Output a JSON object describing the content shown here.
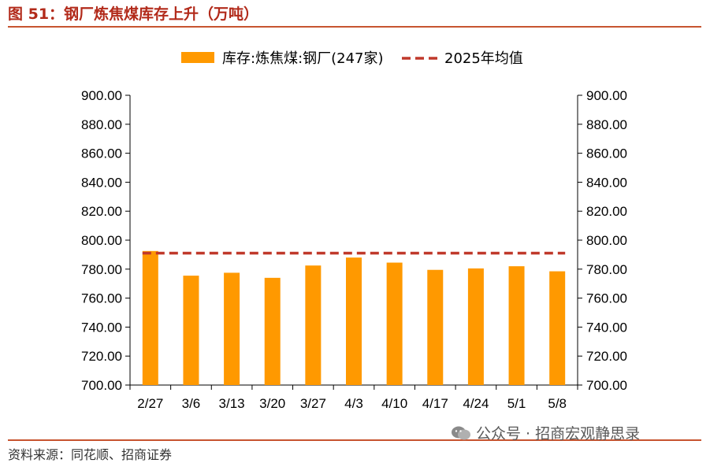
{
  "header": {
    "title": "图 51：钢厂炼焦煤库存上升（万吨）"
  },
  "footer": {
    "source": "资料来源：同花顺、招商证券",
    "watermark": "公众号 · 招商宏观静思录"
  },
  "chart_data": {
    "type": "bar",
    "categories": [
      "2/27",
      "3/6",
      "3/13",
      "3/20",
      "3/27",
      "4/3",
      "4/10",
      "4/17",
      "4/24",
      "5/1",
      "5/8"
    ],
    "series": [
      {
        "name": "库存:炼焦煤:钢厂(247家)",
        "type": "bar",
        "color": "#ff9900",
        "values": [
          792.5,
          775.5,
          777.5,
          774.0,
          782.5,
          788.0,
          784.5,
          779.5,
          780.5,
          782.0,
          778.5
        ]
      },
      {
        "name": "2025年均值",
        "type": "line",
        "style": "dashed",
        "color": "#c0392b",
        "value": 791.0
      }
    ],
    "y_ticks": [
      "700.00",
      "720.00",
      "740.00",
      "760.00",
      "780.00",
      "800.00",
      "820.00",
      "840.00",
      "860.00",
      "880.00",
      "900.00"
    ],
    "ylim": [
      700,
      900
    ],
    "y_axes": "left-and-right",
    "legend_position": "top",
    "grid": false
  }
}
